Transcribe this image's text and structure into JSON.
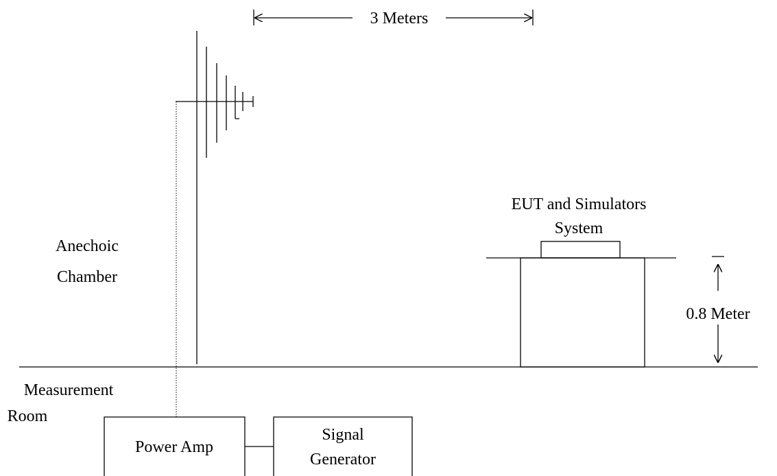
{
  "diagram": {
    "distance_label": "3 Meters",
    "height_label": "0.8 Meter",
    "chamber_label": [
      "Anechoic",
      "Chamber"
    ],
    "room_label": [
      "Measurement",
      "Room"
    ],
    "eut_label": [
      "EUT and Simulators",
      "System"
    ],
    "power_amp_label": "Power Amp",
    "signal_generator_label": [
      "Signal",
      "Generator"
    ]
  },
  "colors": {
    "line": "#000000",
    "background": "#ffffff"
  }
}
